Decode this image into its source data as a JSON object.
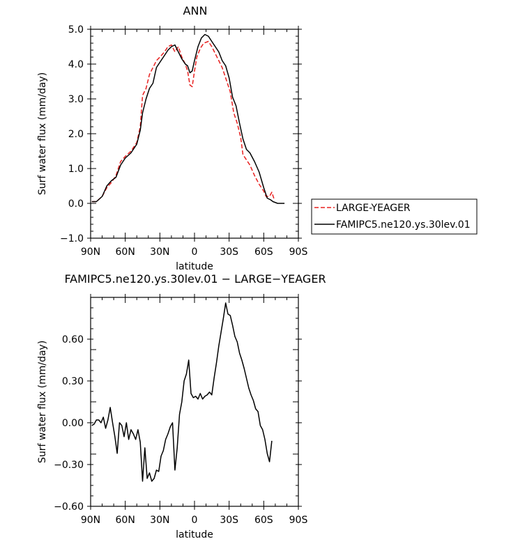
{
  "chart_data": [
    {
      "type": "line",
      "title": "ANN",
      "xlabel": "latitude",
      "ylabel": "Surf water flux (mm/day)",
      "xlim": [
        90,
        -90
      ],
      "ylim": [
        -1.0,
        5.0
      ],
      "x_ticks": [
        {
          "value": 90,
          "label": "90N"
        },
        {
          "value": 60,
          "label": "60N"
        },
        {
          "value": 30,
          "label": "30N"
        },
        {
          "value": 0,
          "label": "0"
        },
        {
          "value": -30,
          "label": "30S"
        },
        {
          "value": -60,
          "label": "60S"
        },
        {
          "value": -90,
          "label": "90S"
        }
      ],
      "y_ticks": [
        {
          "value": -1.0,
          "label": "−1.0"
        },
        {
          "value": 0.0,
          "label": "0.0"
        },
        {
          "value": 1.0,
          "label": "1.0"
        },
        {
          "value": 2.0,
          "label": "2.0"
        },
        {
          "value": 3.0,
          "label": "3.0"
        },
        {
          "value": 4.0,
          "label": "4.0"
        },
        {
          "value": 5.0,
          "label": "5.0"
        }
      ],
      "legend_position": "right",
      "series": [
        {
          "name": "LARGE-YEAGER",
          "color": "#e8201f",
          "dash": true,
          "points": [
            [
              89,
              0.05
            ],
            [
              85,
              0.05
            ],
            [
              80,
              0.2
            ],
            [
              76,
              0.45
            ],
            [
              72,
              0.6
            ],
            [
              68,
              0.8
            ],
            [
              64,
              1.2
            ],
            [
              60,
              1.35
            ],
            [
              55,
              1.5
            ],
            [
              50,
              1.75
            ],
            [
              47,
              2.2
            ],
            [
              45,
              3.1
            ],
            [
              42,
              3.3
            ],
            [
              39,
              3.7
            ],
            [
              36,
              3.9
            ],
            [
              33,
              4.1
            ],
            [
              30,
              4.2
            ],
            [
              26,
              4.35
            ],
            [
              23,
              4.5
            ],
            [
              20,
              4.55
            ],
            [
              17,
              4.35
            ],
            [
              14,
              4.5
            ],
            [
              11,
              4.2
            ],
            [
              8,
              4.0
            ],
            [
              6,
              3.8
            ],
            [
              4,
              3.4
            ],
            [
              2,
              3.35
            ],
            [
              0,
              3.8
            ],
            [
              -2,
              4.2
            ],
            [
              -5,
              4.45
            ],
            [
              -8,
              4.6
            ],
            [
              -12,
              4.65
            ],
            [
              -15,
              4.5
            ],
            [
              -18,
              4.3
            ],
            [
              -21,
              4.1
            ],
            [
              -24,
              3.9
            ],
            [
              -28,
              3.5
            ],
            [
              -31,
              3.2
            ],
            [
              -34,
              2.6
            ],
            [
              -37,
              2.3
            ],
            [
              -40,
              1.9
            ],
            [
              -42,
              1.4
            ],
            [
              -45,
              1.25
            ],
            [
              -48,
              1.1
            ],
            [
              -52,
              0.8
            ],
            [
              -56,
              0.55
            ],
            [
              -60,
              0.35
            ],
            [
              -62,
              0.2
            ],
            [
              -65,
              0.2
            ],
            [
              -67,
              0.32
            ],
            [
              -69,
              0.12
            ]
          ]
        },
        {
          "name": "FAMIPC5.ne120.ys.30lev.01",
          "color": "#000000",
          "dash": false,
          "points": [
            [
              89,
              0.05
            ],
            [
              85,
              0.05
            ],
            [
              80,
              0.2
            ],
            [
              76,
              0.5
            ],
            [
              72,
              0.65
            ],
            [
              68,
              0.75
            ],
            [
              64,
              1.1
            ],
            [
              60,
              1.3
            ],
            [
              55,
              1.45
            ],
            [
              50,
              1.7
            ],
            [
              47,
              2.1
            ],
            [
              45,
              2.6
            ],
            [
              42,
              3.0
            ],
            [
              39,
              3.3
            ],
            [
              36,
              3.45
            ],
            [
              33,
              3.9
            ],
            [
              30,
              4.05
            ],
            [
              26,
              4.25
            ],
            [
              23,
              4.4
            ],
            [
              20,
              4.5
            ],
            [
              17,
              4.55
            ],
            [
              14,
              4.35
            ],
            [
              11,
              4.15
            ],
            [
              8,
              4.0
            ],
            [
              6,
              3.95
            ],
            [
              4,
              3.75
            ],
            [
              2,
              3.8
            ],
            [
              0,
              4.1
            ],
            [
              -3,
              4.5
            ],
            [
              -6,
              4.75
            ],
            [
              -9,
              4.85
            ],
            [
              -12,
              4.8
            ],
            [
              -15,
              4.65
            ],
            [
              -18,
              4.5
            ],
            [
              -21,
              4.35
            ],
            [
              -24,
              4.1
            ],
            [
              -27,
              3.95
            ],
            [
              -30,
              3.6
            ],
            [
              -33,
              3.05
            ],
            [
              -36,
              2.8
            ],
            [
              -39,
              2.3
            ],
            [
              -42,
              1.85
            ],
            [
              -45,
              1.55
            ],
            [
              -48,
              1.45
            ],
            [
              -52,
              1.2
            ],
            [
              -56,
              0.9
            ],
            [
              -60,
              0.45
            ],
            [
              -63,
              0.15
            ],
            [
              -66,
              0.1
            ],
            [
              -68,
              0.05
            ],
            [
              -72,
              0.0
            ],
            [
              -78,
              0.0
            ]
          ]
        }
      ]
    },
    {
      "type": "line",
      "title": "FAMIPC5.ne120.ys.30lev.01 − LARGE−YEAGER",
      "xlabel": "latitude",
      "ylabel": "Surf water flux (mm/day)",
      "xlim": [
        90,
        -90
      ],
      "ylim": [
        -0.6,
        0.9
      ],
      "x_ticks": [
        {
          "value": 90,
          "label": "90N"
        },
        {
          "value": 60,
          "label": "60N"
        },
        {
          "value": 30,
          "label": "30N"
        },
        {
          "value": 0,
          "label": "0"
        },
        {
          "value": -30,
          "label": "30S"
        },
        {
          "value": -60,
          "label": "60S"
        },
        {
          "value": -90,
          "label": "90S"
        }
      ],
      "y_ticks": [
        {
          "value": -0.6,
          "label": "−0.60"
        },
        {
          "value": -0.3,
          "label": "−0.30"
        },
        {
          "value": 0.0,
          "label": "0.00"
        },
        {
          "value": 0.3,
          "label": "0.30"
        },
        {
          "value": 0.6,
          "label": "0.60"
        }
      ],
      "series": [
        {
          "color": "#000000",
          "dash": false,
          "points": [
            [
              89,
              -0.02
            ],
            [
              87,
              -0.01
            ],
            [
              85,
              0.02
            ],
            [
              83,
              0.02
            ],
            [
              81,
              0.0
            ],
            [
              79,
              0.04
            ],
            [
              77,
              -0.04
            ],
            [
              75,
              0.02
            ],
            [
              73,
              0.11
            ],
            [
              71,
              0.0
            ],
            [
              69,
              -0.1
            ],
            [
              67,
              -0.22
            ],
            [
              65,
              0.0
            ],
            [
              63,
              -0.02
            ],
            [
              61,
              -0.1
            ],
            [
              59,
              0.0
            ],
            [
              57,
              -0.12
            ],
            [
              55,
              -0.05
            ],
            [
              53,
              -0.08
            ],
            [
              51,
              -0.12
            ],
            [
              49,
              -0.05
            ],
            [
              47,
              -0.14
            ],
            [
              45,
              -0.42
            ],
            [
              43,
              -0.18
            ],
            [
              41,
              -0.4
            ],
            [
              39,
              -0.36
            ],
            [
              37,
              -0.42
            ],
            [
              35,
              -0.4
            ],
            [
              33,
              -0.34
            ],
            [
              31,
              -0.35
            ],
            [
              29,
              -0.24
            ],
            [
              27,
              -0.2
            ],
            [
              25,
              -0.12
            ],
            [
              23,
              -0.08
            ],
            [
              21,
              -0.03
            ],
            [
              19,
              0.0
            ],
            [
              17,
              -0.34
            ],
            [
              15,
              -0.18
            ],
            [
              13,
              0.06
            ],
            [
              11,
              0.15
            ],
            [
              9,
              0.3
            ],
            [
              7,
              0.35
            ],
            [
              5,
              0.45
            ],
            [
              3,
              0.21
            ],
            [
              1,
              0.18
            ],
            [
              -1,
              0.19
            ],
            [
              -3,
              0.17
            ],
            [
              -5,
              0.21
            ],
            [
              -7,
              0.17
            ],
            [
              -9,
              0.19
            ],
            [
              -11,
              0.2
            ],
            [
              -13,
              0.22
            ],
            [
              -15,
              0.2
            ],
            [
              -17,
              0.32
            ],
            [
              -19,
              0.43
            ],
            [
              -21,
              0.55
            ],
            [
              -23,
              0.65
            ],
            [
              -25,
              0.75
            ],
            [
              -27,
              0.86
            ],
            [
              -29,
              0.78
            ],
            [
              -31,
              0.77
            ],
            [
              -33,
              0.7
            ],
            [
              -35,
              0.62
            ],
            [
              -37,
              0.58
            ],
            [
              -39,
              0.5
            ],
            [
              -41,
              0.45
            ],
            [
              -43,
              0.39
            ],
            [
              -45,
              0.32
            ],
            [
              -47,
              0.25
            ],
            [
              -49,
              0.2
            ],
            [
              -51,
              0.16
            ],
            [
              -53,
              0.1
            ],
            [
              -55,
              0.08
            ],
            [
              -57,
              -0.02
            ],
            [
              -59,
              -0.05
            ],
            [
              -61,
              -0.12
            ],
            [
              -63,
              -0.22
            ],
            [
              -65,
              -0.28
            ],
            [
              -67,
              -0.13
            ]
          ]
        }
      ]
    }
  ]
}
